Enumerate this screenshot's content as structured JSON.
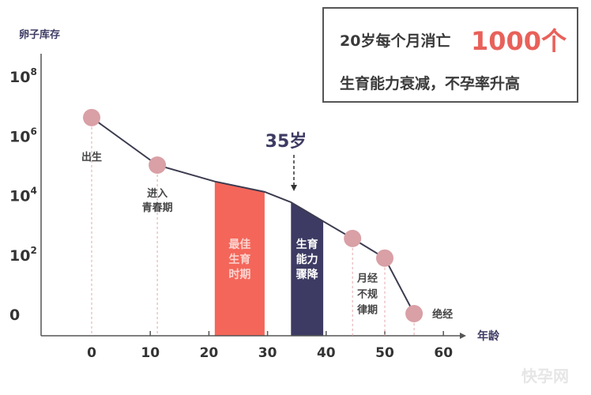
{
  "chart_data": {
    "type": "line",
    "ylabel": "卵子库存",
    "xlabel": "年龄",
    "y_scale": "log10",
    "ylim_exponent": [
      0,
      8
    ],
    "xlim": [
      0,
      60
    ],
    "x_ticks": [
      "0",
      "10",
      "20",
      "30",
      "40",
      "50",
      "60"
    ],
    "y_ticks": [
      {
        "base": "10",
        "exp": "8",
        "value": 8
      },
      {
        "base": "10",
        "exp": "6",
        "value": 6
      },
      {
        "base": "10",
        "exp": "4",
        "value": 4
      },
      {
        "base": "10",
        "exp": "2",
        "value": 2
      },
      {
        "base": "0",
        "exp": "",
        "value": 0
      }
    ],
    "line_points": [
      {
        "age": 0,
        "log10_eggs": 6.6
      },
      {
        "age": 11.2,
        "log10_eggs": 5.0
      },
      {
        "age": 21,
        "log10_eggs": 4.45
      },
      {
        "age": 29.5,
        "log10_eggs": 4.1
      },
      {
        "age": 34,
        "log10_eggs": 3.75
      },
      {
        "age": 40,
        "log10_eggs": 3.05
      },
      {
        "age": 44.5,
        "log10_eggs": 2.53
      },
      {
        "age": 50,
        "log10_eggs": 1.87
      },
      {
        "age": 55,
        "log10_eggs": 0
      }
    ],
    "milestones": [
      {
        "age": 0,
        "log10_eggs": 6.6,
        "label": [
          "出生"
        ],
        "label_side": "below"
      },
      {
        "age": 11.2,
        "log10_eggs": 5.0,
        "label": [
          "进入",
          "青春期"
        ],
        "label_side": "below"
      },
      {
        "age": 44.5,
        "log10_eggs": 2.53,
        "label": [],
        "label_side": "below"
      },
      {
        "age": 50,
        "log10_eggs": 1.87,
        "label": [
          "月经",
          "不规",
          "律期"
        ],
        "label_side": "left"
      },
      {
        "age": 55,
        "log10_eggs": 0,
        "label": [
          "绝经"
        ],
        "label_side": "right"
      }
    ],
    "bands": [
      {
        "from": 21,
        "to": 29.5,
        "color": "#f4665a",
        "label": [
          "最佳",
          "生育",
          "时期"
        ],
        "text_color": "#fbd3cf"
      },
      {
        "from": 34,
        "to": 39.5,
        "color": "#3d3b63",
        "label": [
          "生育",
          "能力",
          "骤降"
        ],
        "text_color": "#ffffff"
      }
    ],
    "annotation": {
      "age": 34.5,
      "label": "35岁"
    },
    "colors": {
      "line": "#3b3b4f",
      "marker": "#d9a0a6",
      "axis": "#555555"
    }
  },
  "info_box": {
    "line1": "20岁每个月消亡",
    "highlight": "1000个",
    "line2": "生育能力衰减，不孕率升高"
  },
  "watermark": "快孕网"
}
